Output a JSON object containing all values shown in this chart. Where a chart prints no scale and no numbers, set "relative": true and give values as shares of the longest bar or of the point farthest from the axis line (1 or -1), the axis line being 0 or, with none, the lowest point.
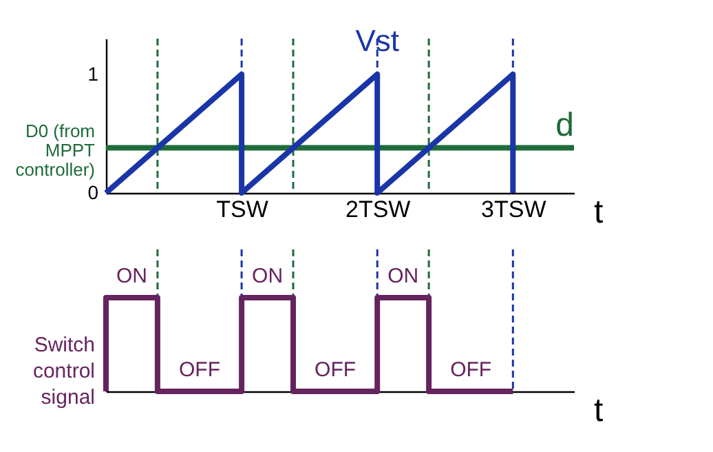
{
  "chart_data": [
    {
      "type": "line",
      "xlabel": "t",
      "x": [
        0,
        1,
        1,
        2,
        2,
        3,
        3
      ],
      "series": [
        {
          "name": "Vst",
          "color": "#1a35a8",
          "values": [
            0,
            1,
            0,
            1,
            0,
            1,
            0
          ]
        }
      ],
      "xlim": [
        0,
        3.45
      ],
      "ylim": [
        0,
        1.3
      ],
      "xticks": [
        {
          "value": 1,
          "label": "TSW"
        },
        {
          "value": 2,
          "label": "2TSW"
        },
        {
          "value": 3,
          "label": "3TSW"
        }
      ],
      "yticks": [
        0,
        1
      ],
      "grid": false,
      "ref_lines": [
        {
          "axis": "y",
          "value": 0.38,
          "label": "d",
          "color": "#1e6b3a",
          "line_style": "solid"
        },
        {
          "axis": "x",
          "value": 0.38,
          "color": "#1e6b3a",
          "line_style": "dashed"
        },
        {
          "axis": "x",
          "value": 1.38,
          "color": "#1e6b3a",
          "line_style": "dashed"
        },
        {
          "axis": "x",
          "value": 2.38,
          "color": "#1e6b3a",
          "line_style": "dashed"
        },
        {
          "axis": "x",
          "value": 1,
          "color": "#1a35a8",
          "line_style": "dashed"
        },
        {
          "axis": "x",
          "value": 2,
          "color": "#1a35a8",
          "line_style": "dashed"
        },
        {
          "axis": "x",
          "value": 3,
          "color": "#1a35a8",
          "line_style": "dashed"
        }
      ],
      "annotations": [
        {
          "text": "D0 (from MPPT controller)",
          "x": 0,
          "y": 0.38
        }
      ]
    },
    {
      "type": "line",
      "relative": true,
      "xlabel": "t",
      "ylabel": "Switch control signal",
      "x": [
        0,
        0,
        0.38,
        0.38,
        1,
        1,
        1.38,
        1.38,
        2,
        2,
        2.38,
        2.38,
        3
      ],
      "series": [
        {
          "color": "#66245f",
          "values": [
            0,
            1,
            1,
            0,
            0,
            1,
            1,
            0,
            0,
            1,
            1,
            0,
            0
          ]
        }
      ],
      "xlim": [
        0,
        3.45
      ],
      "grid": false,
      "ref_lines": [
        {
          "axis": "x",
          "value": 0.38,
          "color": "#1e6b3a",
          "line_style": "dashed"
        },
        {
          "axis": "x",
          "value": 1.38,
          "color": "#1e6b3a",
          "line_style": "dashed"
        },
        {
          "axis": "x",
          "value": 2.38,
          "color": "#1e6b3a",
          "line_style": "dashed"
        },
        {
          "axis": "x",
          "value": 1,
          "color": "#1a35a8",
          "line_style": "dashed"
        },
        {
          "axis": "x",
          "value": 2,
          "color": "#1a35a8",
          "line_style": "dashed"
        },
        {
          "axis": "x",
          "value": 3,
          "color": "#1a35a8",
          "line_style": "dashed"
        }
      ],
      "annotations": [
        {
          "text": "ON",
          "x": 0.19,
          "y": 1
        },
        {
          "text": "OFF",
          "x": 0.69,
          "y": 0
        },
        {
          "text": "ON",
          "x": 1.19,
          "y": 1
        },
        {
          "text": "OFF",
          "x": 1.69,
          "y": 0
        },
        {
          "text": "ON",
          "x": 2.19,
          "y": 1
        },
        {
          "text": "OFF",
          "x": 2.69,
          "y": 0
        }
      ]
    }
  ]
}
